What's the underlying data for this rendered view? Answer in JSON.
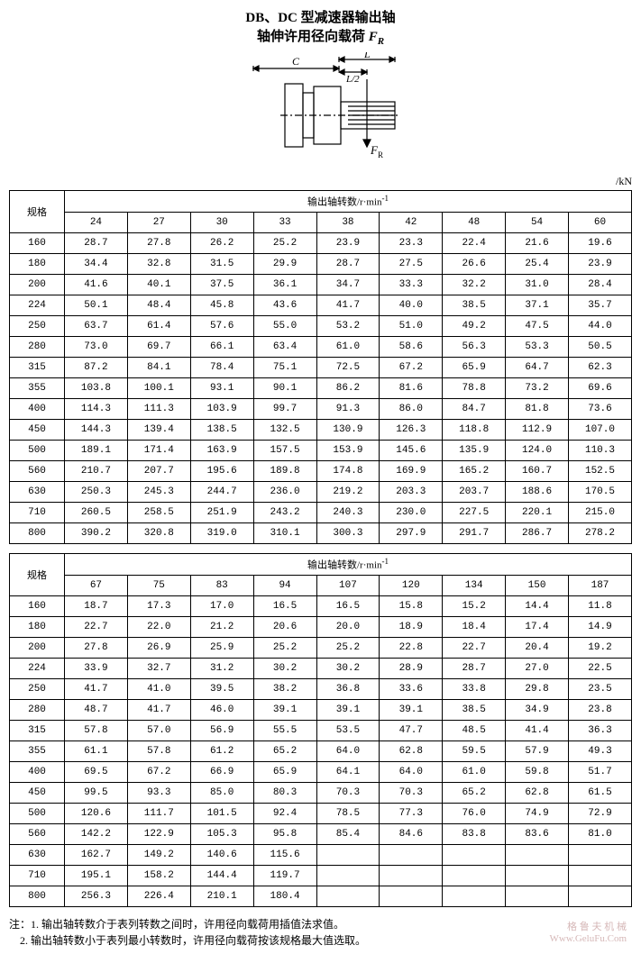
{
  "title": {
    "line1_prefix": "DB、DC 型减速器输出轴",
    "line2_prefix": "轴伸许用径向载荷 ",
    "symbol_F": "F",
    "symbol_R": "R"
  },
  "diagram": {
    "label_C": "C",
    "label_L": "L",
    "label_L2": "L/2",
    "label_FR_F": "F",
    "label_FR_R": "R",
    "stroke": "#000000"
  },
  "unit_label": "/kN",
  "table_common": {
    "spec_header": "规格",
    "rpm_header_prefix": "输出轴转数/r·min",
    "rpm_header_exp": "-1"
  },
  "table1": {
    "columns": [
      "24",
      "27",
      "30",
      "33",
      "38",
      "42",
      "48",
      "54",
      "60"
    ],
    "rows": [
      {
        "spec": "160",
        "vals": [
          "28.7",
          "27.8",
          "26.2",
          "25.2",
          "23.9",
          "23.3",
          "22.4",
          "21.6",
          "19.6"
        ]
      },
      {
        "spec": "180",
        "vals": [
          "34.4",
          "32.8",
          "31.5",
          "29.9",
          "28.7",
          "27.5",
          "26.6",
          "25.4",
          "23.9"
        ]
      },
      {
        "spec": "200",
        "vals": [
          "41.6",
          "40.1",
          "37.5",
          "36.1",
          "34.7",
          "33.3",
          "32.2",
          "31.0",
          "28.4"
        ]
      },
      {
        "spec": "224",
        "vals": [
          "50.1",
          "48.4",
          "45.8",
          "43.6",
          "41.7",
          "40.0",
          "38.5",
          "37.1",
          "35.7"
        ]
      },
      {
        "spec": "250",
        "vals": [
          "63.7",
          "61.4",
          "57.6",
          "55.0",
          "53.2",
          "51.0",
          "49.2",
          "47.5",
          "44.0"
        ]
      },
      {
        "spec": "280",
        "vals": [
          "73.0",
          "69.7",
          "66.1",
          "63.4",
          "61.0",
          "58.6",
          "56.3",
          "53.3",
          "50.5"
        ]
      },
      {
        "spec": "315",
        "vals": [
          "87.2",
          "84.1",
          "78.4",
          "75.1",
          "72.5",
          "67.2",
          "65.9",
          "64.7",
          "62.3"
        ]
      },
      {
        "spec": "355",
        "vals": [
          "103.8",
          "100.1",
          "93.1",
          "90.1",
          "86.2",
          "81.6",
          "78.8",
          "73.2",
          "69.6"
        ]
      },
      {
        "spec": "400",
        "vals": [
          "114.3",
          "111.3",
          "103.9",
          "99.7",
          "91.3",
          "86.0",
          "84.7",
          "81.8",
          "73.6"
        ]
      },
      {
        "spec": "450",
        "vals": [
          "144.3",
          "139.4",
          "138.5",
          "132.5",
          "130.9",
          "126.3",
          "118.8",
          "112.9",
          "107.0"
        ]
      },
      {
        "spec": "500",
        "vals": [
          "189.1",
          "171.4",
          "163.9",
          "157.5",
          "153.9",
          "145.6",
          "135.9",
          "124.0",
          "110.3"
        ]
      },
      {
        "spec": "560",
        "vals": [
          "210.7",
          "207.7",
          "195.6",
          "189.8",
          "174.8",
          "169.9",
          "165.2",
          "160.7",
          "152.5"
        ]
      },
      {
        "spec": "630",
        "vals": [
          "250.3",
          "245.3",
          "244.7",
          "236.0",
          "219.2",
          "203.3",
          "203.7",
          "188.6",
          "170.5"
        ]
      },
      {
        "spec": "710",
        "vals": [
          "260.5",
          "258.5",
          "251.9",
          "243.2",
          "240.3",
          "230.0",
          "227.5",
          "220.1",
          "215.0"
        ]
      },
      {
        "spec": "800",
        "vals": [
          "390.2",
          "320.8",
          "319.0",
          "310.1",
          "300.3",
          "297.9",
          "291.7",
          "286.7",
          "278.2"
        ]
      }
    ]
  },
  "table2": {
    "columns": [
      "67",
      "75",
      "83",
      "94",
      "107",
      "120",
      "134",
      "150",
      "187"
    ],
    "rows": [
      {
        "spec": "160",
        "vals": [
          "18.7",
          "17.3",
          "17.0",
          "16.5",
          "16.5",
          "15.8",
          "15.2",
          "14.4",
          "11.8"
        ]
      },
      {
        "spec": "180",
        "vals": [
          "22.7",
          "22.0",
          "21.2",
          "20.6",
          "20.0",
          "18.9",
          "18.4",
          "17.4",
          "14.9"
        ]
      },
      {
        "spec": "200",
        "vals": [
          "27.8",
          "26.9",
          "25.9",
          "25.2",
          "25.2",
          "22.8",
          "22.7",
          "20.4",
          "19.2"
        ]
      },
      {
        "spec": "224",
        "vals": [
          "33.9",
          "32.7",
          "31.2",
          "30.2",
          "30.2",
          "28.9",
          "28.7",
          "27.0",
          "22.5"
        ]
      },
      {
        "spec": "250",
        "vals": [
          "41.7",
          "41.0",
          "39.5",
          "38.2",
          "36.8",
          "33.6",
          "33.8",
          "29.8",
          "23.5"
        ]
      },
      {
        "spec": "280",
        "vals": [
          "48.7",
          "41.7",
          "46.0",
          "39.1",
          "39.1",
          "39.1",
          "38.5",
          "34.9",
          "23.8"
        ]
      },
      {
        "spec": "315",
        "vals": [
          "57.8",
          "57.0",
          "56.9",
          "55.5",
          "53.5",
          "47.7",
          "48.5",
          "41.4",
          "36.3"
        ]
      },
      {
        "spec": "355",
        "vals": [
          "61.1",
          "57.8",
          "61.2",
          "65.2",
          "64.0",
          "62.8",
          "59.5",
          "57.9",
          "49.3"
        ]
      },
      {
        "spec": "400",
        "vals": [
          "69.5",
          "67.2",
          "66.9",
          "65.9",
          "64.1",
          "64.0",
          "61.0",
          "59.8",
          "51.7"
        ]
      },
      {
        "spec": "450",
        "vals": [
          "99.5",
          "93.3",
          "85.0",
          "80.3",
          "70.3",
          "70.3",
          "65.2",
          "62.8",
          "61.5"
        ]
      },
      {
        "spec": "500",
        "vals": [
          "120.6",
          "111.7",
          "101.5",
          "92.4",
          "78.5",
          "77.3",
          "76.0",
          "74.9",
          "72.9"
        ]
      },
      {
        "spec": "560",
        "vals": [
          "142.2",
          "122.9",
          "105.3",
          "95.8",
          "85.4",
          "84.6",
          "83.8",
          "83.6",
          "81.0"
        ]
      },
      {
        "spec": "630",
        "vals": [
          "162.7",
          "149.2",
          "140.6",
          "115.6",
          "",
          "",
          "",
          "",
          ""
        ]
      },
      {
        "spec": "710",
        "vals": [
          "195.1",
          "158.2",
          "144.4",
          "119.7",
          "",
          "",
          "",
          "",
          ""
        ]
      },
      {
        "spec": "800",
        "vals": [
          "256.3",
          "226.4",
          "210.1",
          "180.4",
          "",
          "",
          "",
          "",
          ""
        ]
      }
    ]
  },
  "notes": {
    "prefix": "注：",
    "n1": "1. 输出轴转数介于表列转数之间时，许用径向载荷用插值法求值。",
    "n2": "2. 输出轴转数小于表列最小转数时，许用径向载荷按该规格最大值选取。"
  },
  "watermark": {
    "line1": "格 鲁 夫 机 械",
    "line2": "Www.GeluFu.Com"
  }
}
